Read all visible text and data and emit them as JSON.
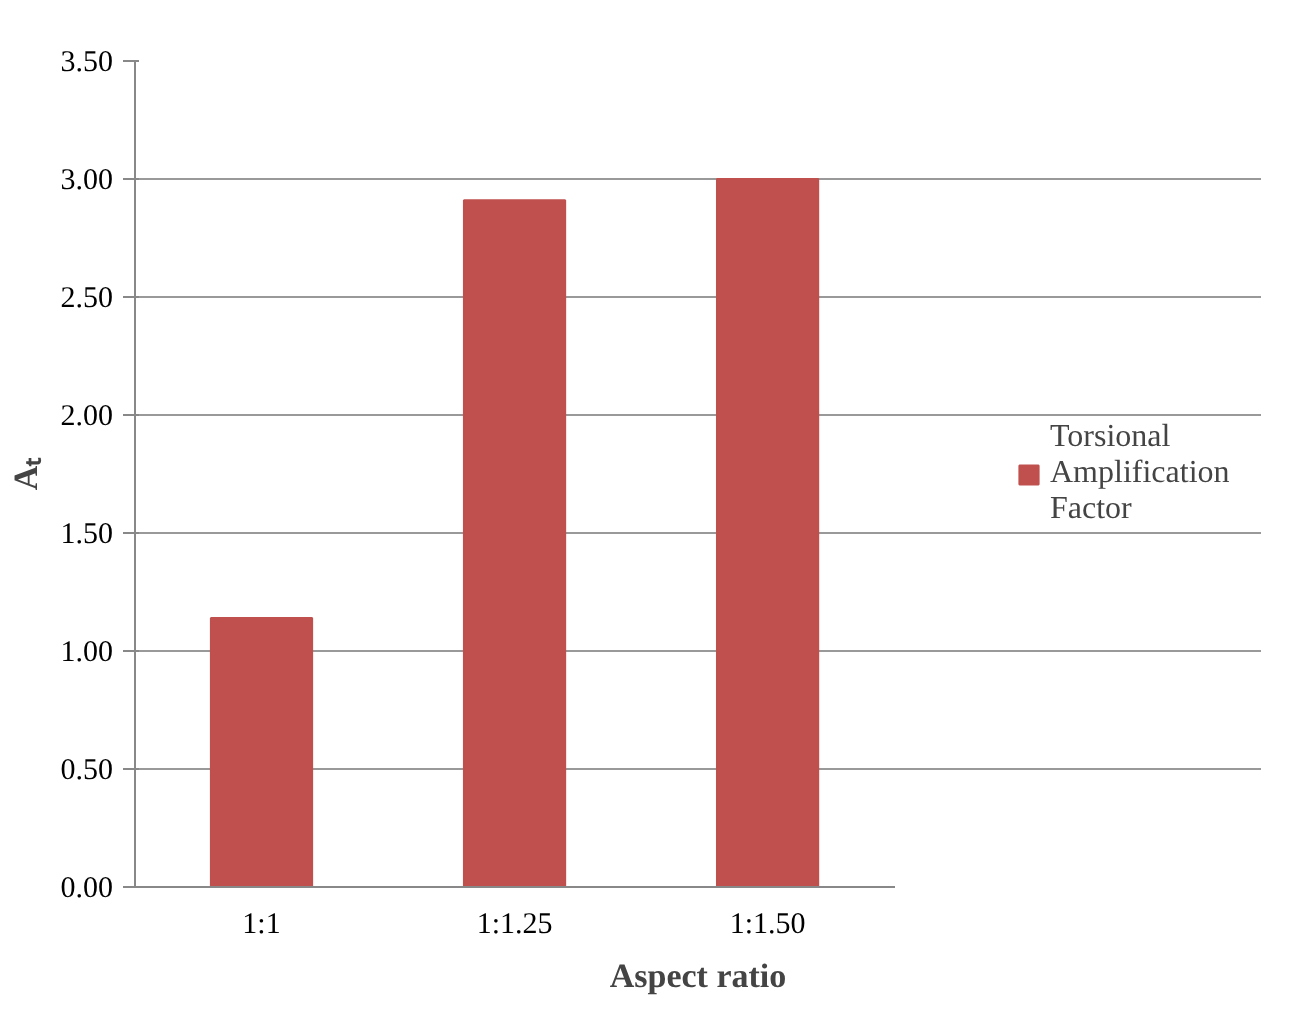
{
  "chart_data": {
    "type": "bar",
    "xlabel": "Aspect ratio",
    "ylabel": "Aₜ",
    "categories": [
      "1:1",
      "1:1.25",
      "1:1.50"
    ],
    "series": [
      {
        "name": "Torsional Amplification Factor",
        "color": "#c0504d",
        "values": [
          1.14,
          2.91,
          3.0
        ]
      }
    ],
    "ylim": [
      0,
      3.5
    ],
    "yticks": [
      {
        "value": 0,
        "label": "0.00"
      },
      {
        "value": 0.5,
        "label": "0.50"
      },
      {
        "value": 1,
        "label": "1.00"
      },
      {
        "value": 1.5,
        "label": "1.50"
      },
      {
        "value": 2,
        "label": "2.00"
      },
      {
        "value": 2.5,
        "label": "2.50"
      },
      {
        "value": 3,
        "label": "3.00"
      },
      {
        "value": 3.5,
        "label": "3.50"
      }
    ],
    "grid": "y",
    "legend": "right"
  }
}
